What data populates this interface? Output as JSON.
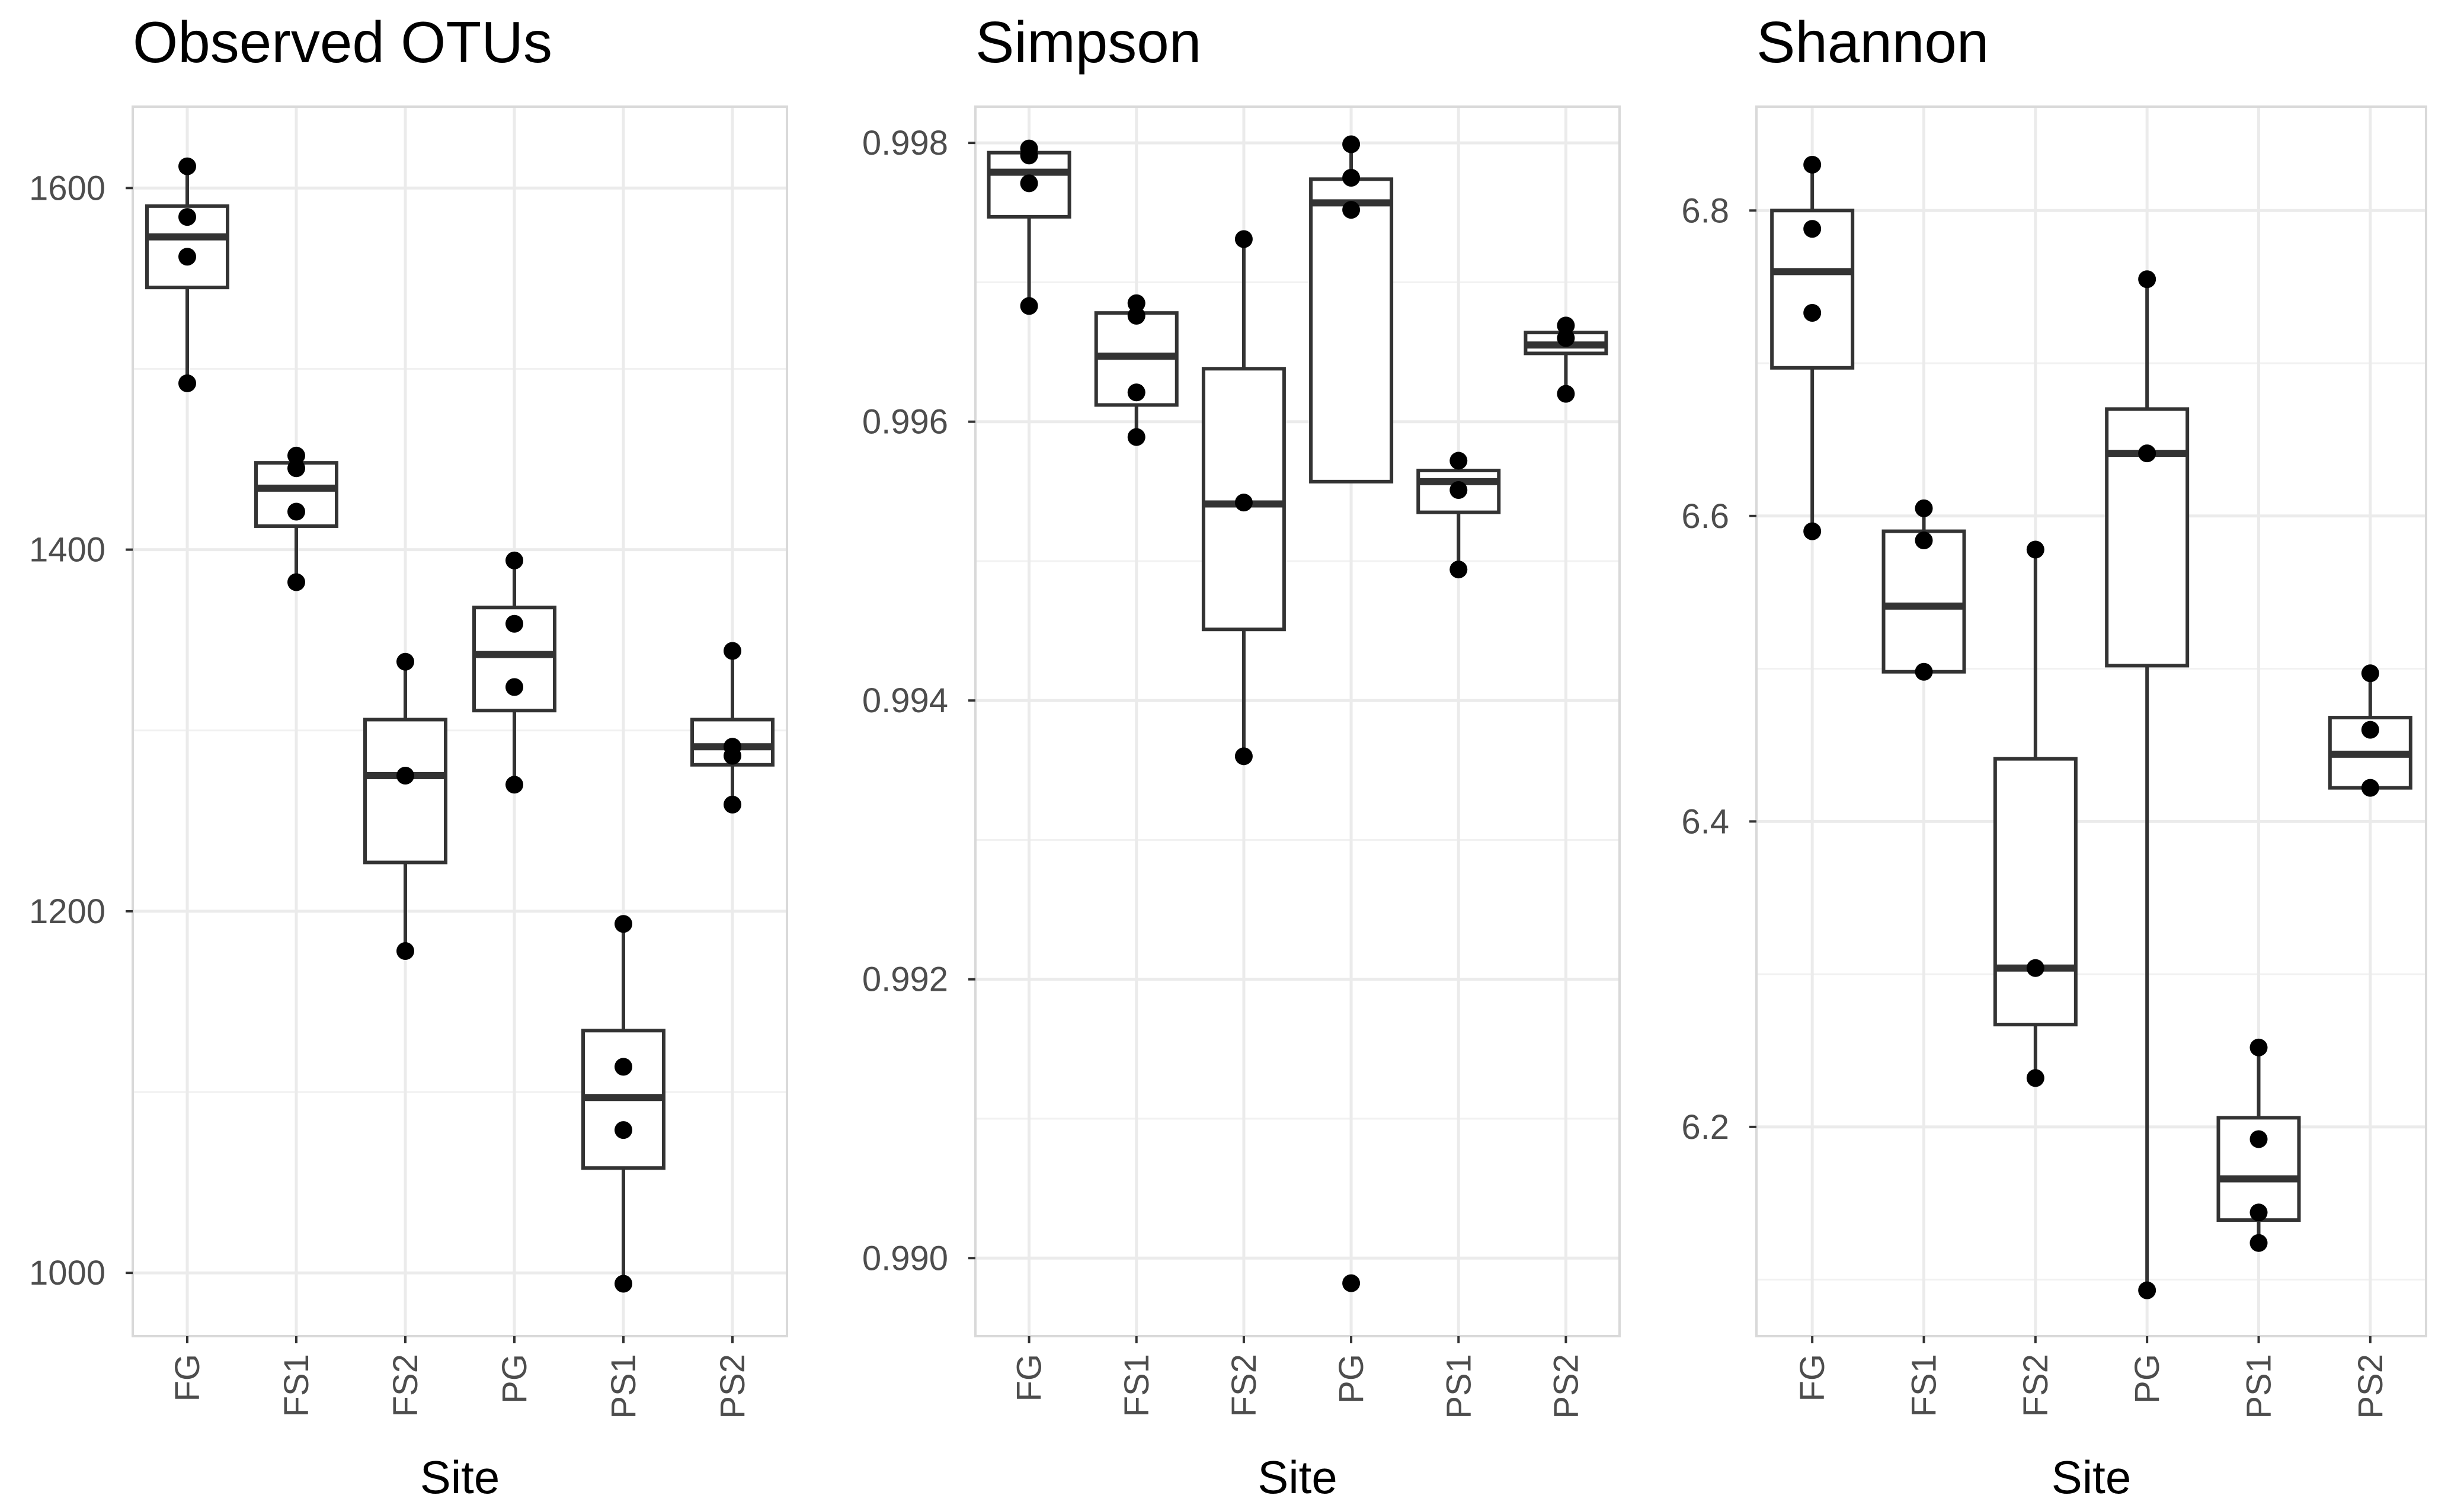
{
  "chart_data": [
    {
      "type": "box",
      "title": "Observed OTUs",
      "xlabel": "Site",
      "ylabel": "",
      "categories": [
        "FG",
        "FS1",
        "FS2",
        "PG",
        "PS1",
        "PS2"
      ],
      "ylim": [
        965,
        1645
      ],
      "yticks": [
        1000,
        1200,
        1400,
        1600
      ],
      "ytick_labels": [
        "1000",
        "1200",
        "1400",
        "1600"
      ],
      "grid": true,
      "boxes": [
        {
          "category": "FG",
          "lower_whisker": 1492,
          "q1": 1545,
          "median": 1573,
          "q3": 1590,
          "upper_whisker": 1612
        },
        {
          "category": "FS1",
          "lower_whisker": 1382,
          "q1": 1413,
          "median": 1434,
          "q3": 1448,
          "upper_whisker": 1452
        },
        {
          "category": "FS2",
          "lower_whisker": 1178,
          "q1": 1227,
          "median": 1275,
          "q3": 1306,
          "upper_whisker": 1338
        },
        {
          "category": "PG",
          "lower_whisker": 1270,
          "q1": 1311,
          "median": 1342,
          "q3": 1368,
          "upper_whisker": 1394
        },
        {
          "category": "PS1",
          "lower_whisker": 994,
          "q1": 1058,
          "median": 1097,
          "q3": 1134,
          "upper_whisker": 1193
        },
        {
          "category": "PS2",
          "lower_whisker": 1259,
          "q1": 1281,
          "median": 1291,
          "q3": 1306,
          "upper_whisker": 1344
        }
      ],
      "points": [
        {
          "category": "FG",
          "values": [
            1612,
            1584,
            1562,
            1492
          ]
        },
        {
          "category": "FS1",
          "values": [
            1452,
            1445,
            1421,
            1382
          ]
        },
        {
          "category": "FS2",
          "values": [
            1338,
            1275,
            1178
          ]
        },
        {
          "category": "PG",
          "values": [
            1394,
            1359,
            1324,
            1270
          ]
        },
        {
          "category": "PS1",
          "values": [
            1193,
            1114,
            1079,
            994
          ]
        },
        {
          "category": "PS2",
          "values": [
            1344,
            1291,
            1286,
            1259
          ]
        }
      ]
    },
    {
      "type": "box",
      "title": "Simpson",
      "xlabel": "Site",
      "ylabel": "",
      "categories": [
        "FG",
        "FS1",
        "FS2",
        "PG",
        "PS1",
        "PS2"
      ],
      "ylim": [
        0.98944,
        0.99826
      ],
      "yticks": [
        0.99,
        0.992,
        0.994,
        0.996,
        0.998
      ],
      "ytick_labels": [
        "0.990",
        "0.992",
        "0.994",
        "0.996",
        "0.998"
      ],
      "grid": true,
      "boxes": [
        {
          "category": "FG",
          "lower_whisker": 0.99683,
          "q1": 0.99747,
          "median": 0.99779,
          "q3": 0.99793,
          "upper_whisker": 0.99796
        },
        {
          "category": "FS1",
          "lower_whisker": 0.99589,
          "q1": 0.99612,
          "median": 0.99647,
          "q3": 0.99678,
          "upper_whisker": 0.99685
        },
        {
          "category": "FS2",
          "lower_whisker": 0.9936,
          "q1": 0.99451,
          "median": 0.99541,
          "q3": 0.99638,
          "upper_whisker": 0.99731
        },
        {
          "category": "PG",
          "lower_whisker": 0.99557,
          "q1": 0.99557,
          "median": 0.99757,
          "q3": 0.99774,
          "upper_whisker": 0.99799
        },
        {
          "category": "PS1",
          "lower_whisker": 0.99494,
          "q1": 0.99535,
          "median": 0.99557,
          "q3": 0.99565,
          "upper_whisker": 0.99572
        },
        {
          "category": "PS2",
          "lower_whisker": 0.9962,
          "q1": 0.99649,
          "median": 0.99655,
          "q3": 0.99664,
          "upper_whisker": 0.99669
        }
      ],
      "points": [
        {
          "category": "FG",
          "values": [
            0.99796,
            0.99791,
            0.99771,
            0.99683
          ]
        },
        {
          "category": "FS1",
          "values": [
            0.99685,
            0.99676,
            0.99621,
            0.99589
          ]
        },
        {
          "category": "FS2",
          "values": [
            0.99731,
            0.99542,
            0.9936
          ]
        },
        {
          "category": "PG",
          "values": [
            0.99799,
            0.99775,
            0.99752,
            0.98982
          ]
        },
        {
          "category": "PS1",
          "values": [
            0.99572,
            0.99551,
            0.99494
          ]
        },
        {
          "category": "PS2",
          "values": [
            0.99669,
            0.9966,
            0.9962
          ]
        }
      ]
    },
    {
      "type": "box",
      "title": "Shannon",
      "xlabel": "Site",
      "ylabel": "",
      "categories": [
        "FG",
        "FS1",
        "FS2",
        "PG",
        "PS1",
        "PS2"
      ],
      "ylim": [
        6.063,
        6.868
      ],
      "yticks": [
        6.2,
        6.4,
        6.6,
        6.8
      ],
      "ytick_labels": [
        "6.2",
        "6.4",
        "6.6",
        "6.8"
      ],
      "grid": true,
      "boxes": [
        {
          "category": "FG",
          "lower_whisker": 6.59,
          "q1": 6.697,
          "median": 6.76,
          "q3": 6.8,
          "upper_whisker": 6.83
        },
        {
          "category": "FS1",
          "lower_whisker": 6.498,
          "q1": 6.498,
          "median": 6.541,
          "q3": 6.59,
          "upper_whisker": 6.605
        },
        {
          "category": "FS2",
          "lower_whisker": 6.232,
          "q1": 6.267,
          "median": 6.304,
          "q3": 6.441,
          "upper_whisker": 6.578
        },
        {
          "category": "PG",
          "lower_whisker": 6.093,
          "q1": 6.502,
          "median": 6.641,
          "q3": 6.67,
          "upper_whisker": 6.755
        },
        {
          "category": "PS1",
          "lower_whisker": 6.124,
          "q1": 6.139,
          "median": 6.166,
          "q3": 6.206,
          "upper_whisker": 6.252
        },
        {
          "category": "PS2",
          "lower_whisker": 6.422,
          "q1": 6.422,
          "median": 6.444,
          "q3": 6.468,
          "upper_whisker": 6.497
        }
      ],
      "points": [
        {
          "category": "FG",
          "values": [
            6.83,
            6.788,
            6.733,
            6.59
          ]
        },
        {
          "category": "FS1",
          "values": [
            6.605,
            6.584,
            6.498
          ]
        },
        {
          "category": "FS2",
          "values": [
            6.578,
            6.304,
            6.232
          ]
        },
        {
          "category": "PG",
          "values": [
            6.755,
            6.641,
            6.093
          ]
        },
        {
          "category": "PS1",
          "values": [
            6.252,
            6.192,
            6.144,
            6.124
          ]
        },
        {
          "category": "PS2",
          "values": [
            6.497,
            6.46,
            6.422
          ]
        }
      ]
    }
  ]
}
